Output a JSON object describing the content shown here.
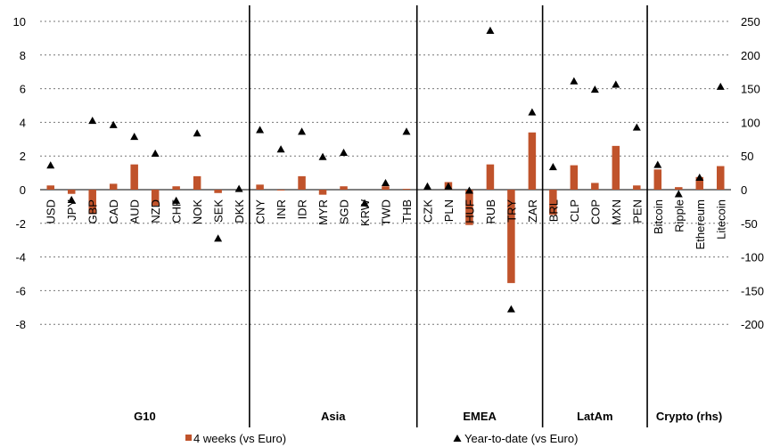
{
  "chart_data": {
    "type": "bar",
    "title": "",
    "ylabel": "",
    "y2label": "",
    "ylim": [
      -8,
      10
    ],
    "y2lim": [
      -200,
      250
    ],
    "yticks": [
      "-8",
      "-6",
      "-4",
      "-2",
      "0",
      "2",
      "4",
      "6",
      "8",
      "10"
    ],
    "y2ticks": [
      "-200",
      "-150",
      "-100",
      "-50",
      "0",
      "50",
      "100",
      "150",
      "200",
      "250"
    ],
    "grid": "horizontal dashed",
    "groups": [
      {
        "label": "G10",
        "count": 10
      },
      {
        "label": "Asia",
        "count": 8
      },
      {
        "label": "EMEA",
        "count": 6
      },
      {
        "label": "LatAm",
        "count": 5
      },
      {
        "label": "Crypto (rhs)",
        "count": 4
      }
    ],
    "categories": [
      "USD",
      "JPY",
      "GBP",
      "CAD",
      "AUD",
      "NZD",
      "CHF",
      "NOK",
      "SEK",
      "DKK",
      "CNY",
      "INR",
      "IDR",
      "MYR",
      "SGD",
      "KRW",
      "TWD",
      "THB",
      "CZK",
      "PLN",
      "HUF",
      "RUB",
      "TRY",
      "ZAR",
      "BRL",
      "CLP",
      "COP",
      "MXN",
      "PEN",
      "Bitcoin",
      "Ripple",
      "Ethereum",
      "Litecoin"
    ],
    "series": [
      {
        "name": "4 weeks (vs Euro)",
        "type": "bar",
        "color": "#c0532b",
        "values": [
          0.25,
          -0.25,
          -1.45,
          0.35,
          1.5,
          -0.95,
          0.2,
          0.8,
          -0.2,
          0.0,
          0.3,
          -0.05,
          0.8,
          -0.3,
          0.2,
          0.0,
          0.2,
          0.05,
          0.0,
          0.45,
          -2.1,
          1.5,
          -5.55,
          3.4,
          -1.5,
          1.45,
          0.4,
          2.6,
          0.25,
          1.2,
          0.15,
          0.75,
          1.4
        ],
        "note": "Crypto values read on the right-hand scale"
      },
      {
        "name": "Year-to-date (vs Euro)",
        "type": "scatter",
        "marker": "triangle",
        "color": "#000000",
        "values": [
          1.45,
          -0.6,
          4.1,
          3.85,
          3.15,
          2.15,
          -0.65,
          3.35,
          -2.9,
          0.05,
          3.55,
          2.4,
          3.45,
          1.95,
          2.2,
          -0.8,
          0.4,
          3.45,
          0.2,
          0.2,
          -0.05,
          9.45,
          -7.1,
          4.6,
          1.35,
          6.45,
          5.95,
          6.25,
          3.7,
          1.48,
          -0.26,
          0.72,
          6.12
        ],
        "note": "Crypto values read on the right-hand scale"
      }
    ],
    "legend": {
      "position": "bottom",
      "entries": [
        "4 weeks (vs Euro)",
        "Year-to-date (vs Euro)"
      ]
    }
  }
}
